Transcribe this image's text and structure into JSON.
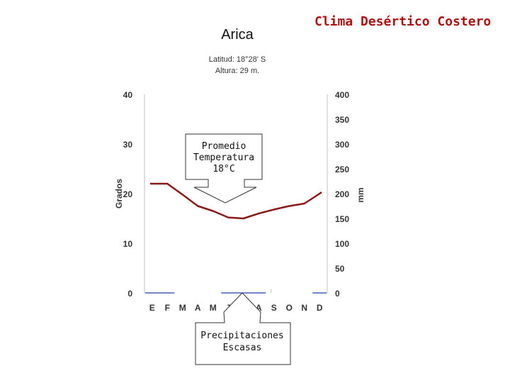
{
  "header": {
    "title": "Clima Desértico Costero"
  },
  "chart_data": {
    "type": "line",
    "title": "Arica",
    "subtitle_lines": [
      "Latitud: 18°28' S",
      "Altura: 29 m."
    ],
    "ylabel_left": "Grados",
    "ylabel_right": "mm",
    "left_axis": {
      "range": [
        0,
        40
      ],
      "ticks": [
        0,
        10,
        20,
        30,
        40
      ]
    },
    "right_axis": {
      "range": [
        0,
        400
      ],
      "ticks": [
        0,
        50,
        100,
        150,
        200,
        250,
        300,
        350,
        400
      ]
    },
    "categories": [
      "E",
      "F",
      "M",
      "A",
      "M",
      "J",
      "J",
      "A",
      "S",
      "O",
      "N",
      "D"
    ],
    "series": [
      {
        "kind": "temperature",
        "axis": "left",
        "color": "#8b1a1a",
        "values": [
          22.0,
          22.0,
          19.8,
          17.5,
          16.5,
          15.2,
          15.0,
          16.0,
          16.8,
          17.5,
          18.0,
          20.0
        ]
      },
      {
        "kind": "precipitation",
        "axis": "right",
        "color": "#1f3fb0",
        "values": [
          0,
          0,
          0,
          0,
          0,
          0,
          0,
          0,
          0,
          0,
          0,
          0
        ]
      }
    ],
    "grid": false,
    "annotations": [
      {
        "id": "temp",
        "lines": [
          "Promedio",
          "Temperatura",
          "18°C"
        ]
      },
      {
        "id": "precip",
        "lines": [
          "Precipitaciones",
          "Escasas"
        ]
      }
    ]
  }
}
